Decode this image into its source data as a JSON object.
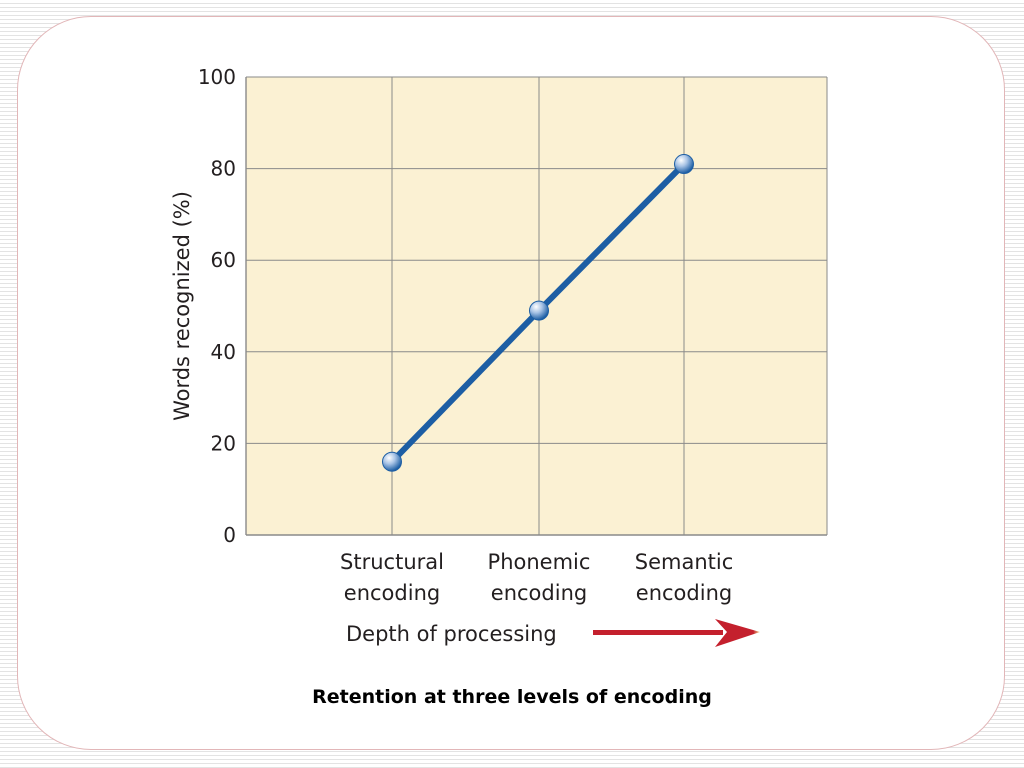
{
  "caption": "Retention at three levels of encoding",
  "colors": {
    "plot_background": "#fbf1d3",
    "grid": "#8a8a8a",
    "line": "#1d5ea4",
    "marker": "#a9c4e6",
    "arrow_start": "#f3dd92",
    "arrow_end": "#c4202d",
    "panel_border": "#e2b6b8"
  },
  "chart_data": {
    "type": "line",
    "title": "",
    "ylabel": "Words recognized (%)",
    "xlabel": "Depth of processing",
    "ylim": [
      0,
      100
    ],
    "yticks": [
      0,
      20,
      40,
      60,
      80,
      100
    ],
    "grid": true,
    "categories": [
      [
        "Structural",
        "encoding"
      ],
      [
        "Phonemic",
        "encoding"
      ],
      [
        "Semantic",
        "encoding"
      ]
    ],
    "series": [
      {
        "values": [
          16,
          49,
          81
        ]
      }
    ]
  }
}
